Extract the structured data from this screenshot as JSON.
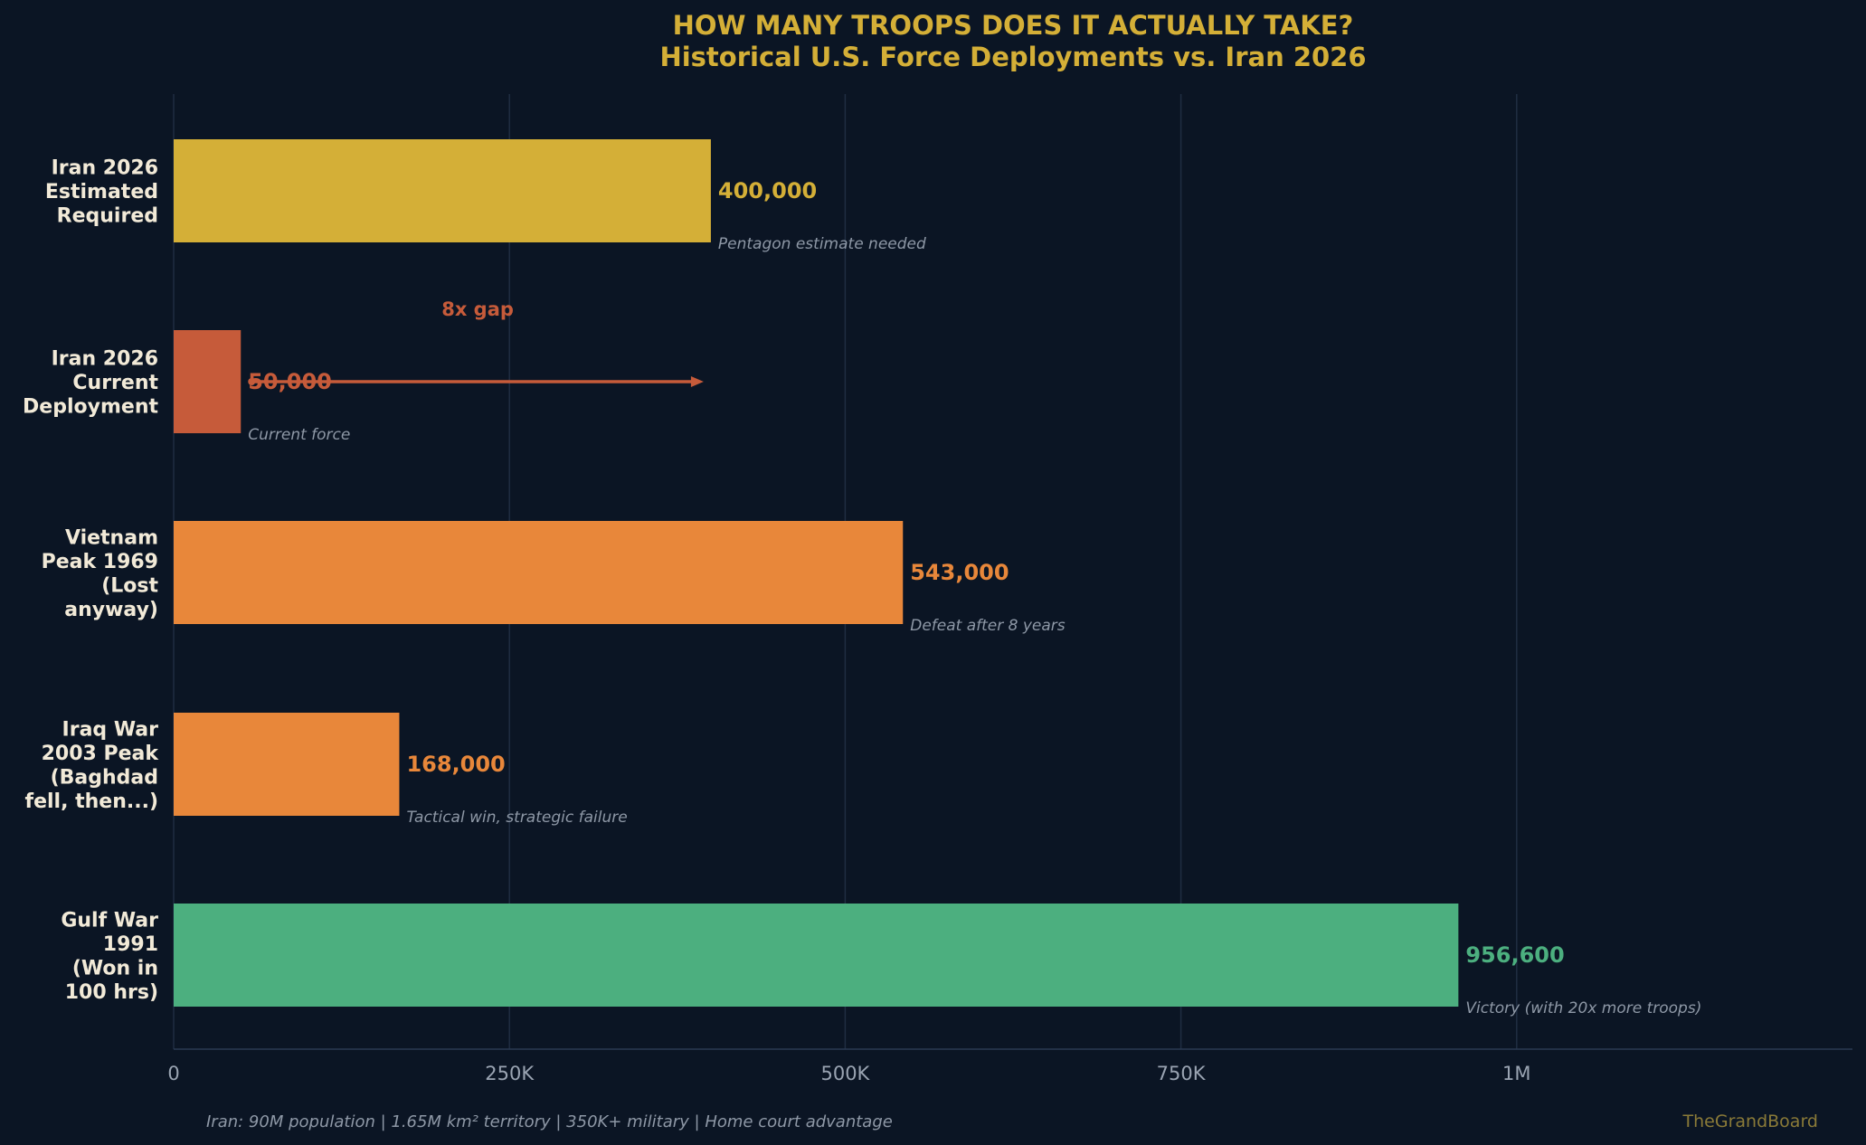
{
  "chart_data": {
    "type": "bar",
    "orientation": "horizontal",
    "title": "HOW MANY TROOPS DOES IT ACTUALLY TAKE?",
    "subtitle": "Historical U.S. Force Deployments vs. Iran 2026",
    "xlim": [
      0,
      1250000
    ],
    "grid": true,
    "x_ticks": [
      {
        "value": 0,
        "label": "0"
      },
      {
        "value": 250000,
        "label": "250K"
      },
      {
        "value": 500000,
        "label": "500K"
      },
      {
        "value": 750000,
        "label": "750K"
      },
      {
        "value": 1000000,
        "label": "1M"
      }
    ],
    "bars": [
      {
        "category": [
          "Iran 2026",
          "Estimated",
          "Required"
        ],
        "value": 400000,
        "value_label": "400,000",
        "note": "Pentagon estimate needed",
        "color": "#d4af37"
      },
      {
        "category": [
          "Iran 2026",
          "Current",
          "Deployment"
        ],
        "value": 50000,
        "value_label": "50,000",
        "note": "Current force",
        "color": "#c65b3a"
      },
      {
        "category": [
          "Vietnam",
          "Peak 1969",
          "(Lost",
          "anyway)"
        ],
        "value": 543000,
        "value_label": "543,000",
        "note": "Defeat after 8 years",
        "color": "#e8873a"
      },
      {
        "category": [
          "Iraq War",
          "2003 Peak",
          "(Baghdad",
          "fell, then...)"
        ],
        "value": 168000,
        "value_label": "168,000",
        "note": "Tactical win, strategic failure",
        "color": "#e8873a"
      },
      {
        "category": [
          "Gulf War",
          "1991",
          "(Won in",
          "100 hrs)"
        ],
        "value": 956600,
        "value_label": "956,600",
        "note": "Victory (with 20x more troops)",
        "color": "#4caf7f"
      }
    ],
    "annotation": {
      "text": "8x gap",
      "from_value": 50000,
      "to_value": 400000,
      "row": 1,
      "color": "#c65b3a"
    }
  },
  "footer": {
    "text": "Iran: 90M population | 1.65M km² territory | 350K+ military | Home court advantage",
    "brand": "TheGrandBoard"
  },
  "colors": {
    "background": "#0b1524",
    "title": "#d4af37",
    "grid": "#1f2d42",
    "brand": "#8a7a38"
  }
}
